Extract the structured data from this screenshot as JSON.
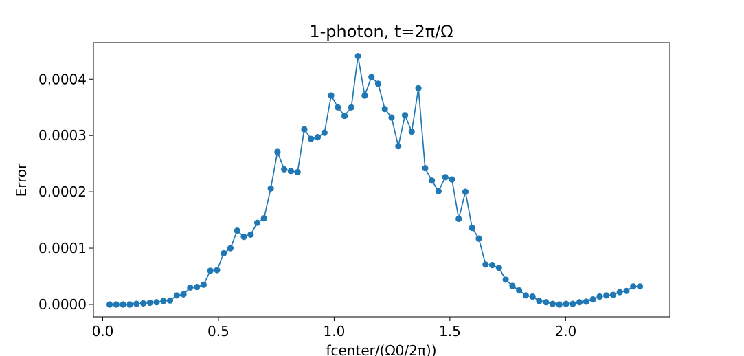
{
  "chart_data": {
    "type": "line",
    "title": "1-photon, t=2π/Ω",
    "xlabel": "fcenter/(Ω0/2π))",
    "ylabel": "Error",
    "xlim": [
      -0.04,
      2.45
    ],
    "ylim": [
      -2.2e-05,
      0.000465
    ],
    "xticks": [
      0.0,
      0.5,
      1.0,
      1.5,
      2.0
    ],
    "xtick_labels": [
      "0.0",
      "0.5",
      "1.0",
      "1.5",
      "2.0"
    ],
    "yticks": [
      0.0,
      0.0001,
      0.0002,
      0.0003,
      0.0004
    ],
    "ytick_labels": [
      "0.0000",
      "0.0001",
      "0.0002",
      "0.0003",
      "0.0004"
    ],
    "grid": false,
    "marker": "circle",
    "color": "#1f77b4",
    "series": [
      {
        "x": [
          0.03,
          0.059,
          0.088,
          0.117,
          0.146,
          0.175,
          0.204,
          0.233,
          0.262,
          0.291,
          0.32,
          0.349,
          0.378,
          0.407,
          0.436,
          0.465,
          0.494,
          0.523,
          0.552,
          0.581,
          0.61,
          0.639,
          0.668,
          0.697,
          0.726,
          0.755,
          0.784,
          0.813,
          0.842,
          0.871,
          0.9,
          0.929,
          0.958,
          0.987,
          1.016,
          1.045,
          1.074,
          1.103,
          1.132,
          1.161,
          1.19,
          1.219,
          1.248,
          1.277,
          1.306,
          1.335,
          1.364,
          1.393,
          1.422,
          1.451,
          1.48,
          1.509,
          1.538,
          1.567,
          1.596,
          1.625,
          1.654,
          1.683,
          1.712,
          1.741,
          1.77,
          1.799,
          1.828,
          1.857,
          1.886,
          1.915,
          1.944,
          1.973,
          2.002,
          2.031,
          2.06,
          2.089,
          2.118,
          2.147,
          2.176,
          2.205,
          2.234,
          2.263,
          2.292,
          2.321
        ],
        "y": [
          0.0,
          0.0,
          0.0,
          0.0,
          1e-06,
          2e-06,
          3e-06,
          4e-06,
          6e-06,
          7e-06,
          1.6e-05,
          1.8e-05,
          3e-05,
          3.1e-05,
          3.5e-05,
          6e-05,
          6.1e-05,
          9.1e-05,
          0.0001,
          0.000131,
          0.00012,
          0.000124,
          0.000145,
          0.000153,
          0.000206,
          0.000271,
          0.00024,
          0.000237,
          0.000235,
          0.000311,
          0.000294,
          0.000297,
          0.000305,
          0.000371,
          0.00035,
          0.000335,
          0.00035,
          0.000441,
          0.000371,
          0.000404,
          0.000392,
          0.000347,
          0.000332,
          0.000281,
          0.000336,
          0.000307,
          0.000384,
          0.000242,
          0.00022,
          0.000201,
          0.000226,
          0.000222,
          0.000152,
          0.0002,
          0.000136,
          0.000117,
          7.1e-05,
          7e-05,
          6.5e-05,
          4.4e-05,
          3.3e-05,
          2.5e-05,
          1.6e-05,
          1.4e-05,
          6e-06,
          4e-06,
          1e-06,
          0.0,
          1e-06,
          1e-06,
          4e-06,
          5e-06,
          9e-06,
          1.4e-05,
          1.6e-05,
          1.7e-05,
          2.2e-05,
          2.4e-05,
          3.2e-05,
          3.2e-05
        ]
      }
    ]
  }
}
